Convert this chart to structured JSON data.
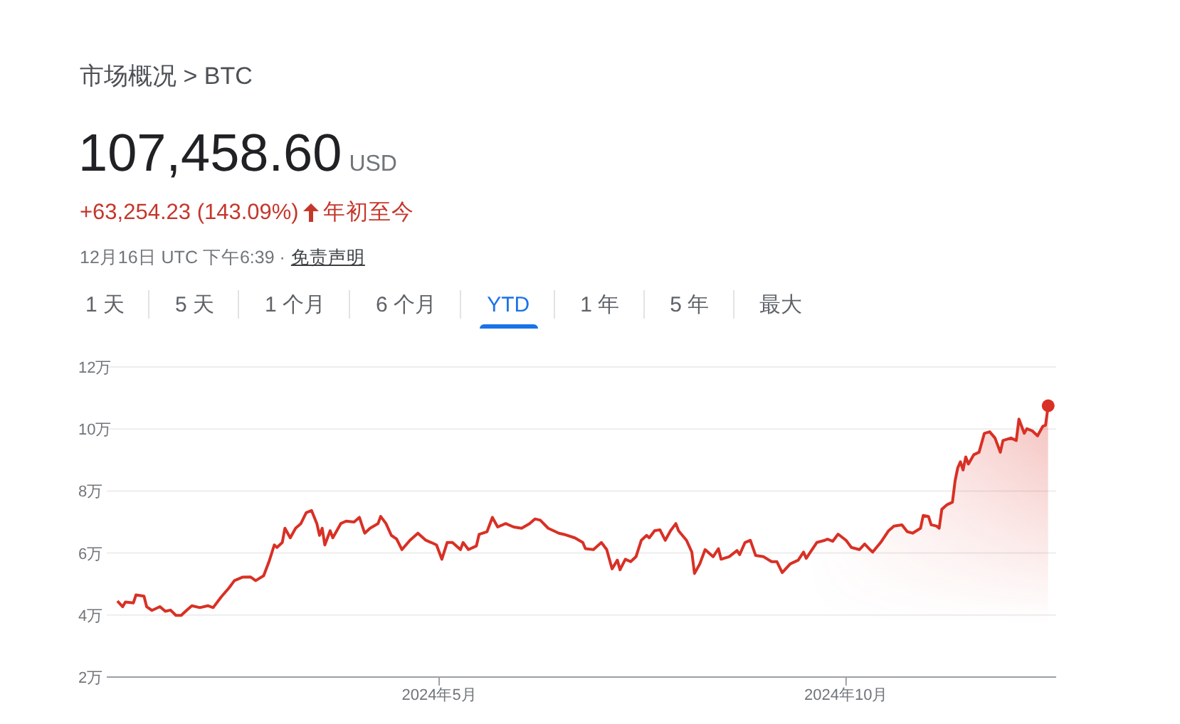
{
  "chart_data": {
    "type": "area",
    "title": "市场概况 > BTC",
    "annotations": [
      "107,458.60",
      "USD",
      "+63,254.23 (143.09%)",
      "年初至今",
      "12月16日 UTC 下午6:39 ·",
      "免责声明",
      "1 天",
      "5 天",
      "1 个月",
      "6 个月",
      "YTD",
      "1 年",
      "5 年",
      "最大"
    ],
    "series": [
      {
        "color": "#d93025",
        "x": [
          "2024-01-01",
          "2024-01-03",
          "2024-01-04",
          "2024-01-07",
          "2024-01-08",
          "2024-01-11",
          "2024-01-12",
          "2024-01-14",
          "2024-01-17",
          "2024-01-19",
          "2024-01-21",
          "2024-01-23",
          "2024-01-25",
          "2024-01-27",
          "2024-01-29",
          "2024-02-01",
          "2024-02-04",
          "2024-02-06",
          "2024-02-09",
          "2024-02-12",
          "2024-02-14",
          "2024-02-17",
          "2024-02-20",
          "2024-02-22",
          "2024-02-25",
          "2024-02-27",
          "2024-02-29",
          "2024-03-01",
          "2024-03-03",
          "2024-03-04",
          "2024-03-06",
          "2024-03-08",
          "2024-03-10",
          "2024-03-12",
          "2024-03-14",
          "2024-03-16",
          "2024-03-17",
          "2024-03-18",
          "2024-03-19",
          "2024-03-21",
          "2024-03-22",
          "2024-03-25",
          "2024-03-27",
          "2024-03-30",
          "2024-04-01",
          "2024-04-03",
          "2024-04-05",
          "2024-04-08",
          "2024-04-09",
          "2024-04-11",
          "2024-04-13",
          "2024-04-15",
          "2024-04-17",
          "2024-04-20",
          "2024-04-23",
          "2024-04-26",
          "2024-04-28",
          "2024-04-30",
          "2024-05-02",
          "2024-05-04",
          "2024-05-06",
          "2024-05-09",
          "2024-05-10",
          "2024-05-12",
          "2024-05-15",
          "2024-05-16",
          "2024-05-19",
          "2024-05-21",
          "2024-05-23",
          "2024-05-26",
          "2024-05-29",
          "2024-06-01",
          "2024-06-04",
          "2024-06-06",
          "2024-06-08",
          "2024-06-11",
          "2024-06-15",
          "2024-06-17",
          "2024-06-21",
          "2024-06-24",
          "2024-06-25",
          "2024-06-28",
          "2024-07-01",
          "2024-07-03",
          "2024-07-05",
          "2024-07-07",
          "2024-07-08",
          "2024-07-10",
          "2024-07-12",
          "2024-07-14",
          "2024-07-16",
          "2024-07-18",
          "2024-07-19",
          "2024-07-21",
          "2024-07-23",
          "2024-07-25",
          "2024-07-27",
          "2024-07-29",
          "2024-07-30",
          "2024-08-02",
          "2024-08-04",
          "2024-08-05",
          "2024-08-07",
          "2024-08-09",
          "2024-08-12",
          "2024-08-14",
          "2024-08-15",
          "2024-08-18",
          "2024-08-21",
          "2024-08-22",
          "2024-08-24",
          "2024-08-26",
          "2024-08-28",
          "2024-08-31",
          "2024-09-03",
          "2024-09-05",
          "2024-09-07",
          "2024-09-10",
          "2024-09-13",
          "2024-09-15",
          "2024-09-16",
          "2024-09-20",
          "2024-09-23",
          "2024-09-24",
          "2024-09-26",
          "2024-09-28",
          "2024-10-01",
          "2024-10-03",
          "2024-10-06",
          "2024-10-08",
          "2024-10-10",
          "2024-10-11",
          "2024-10-14",
          "2024-10-17",
          "2024-10-19",
          "2024-10-22",
          "2024-10-24",
          "2024-10-26",
          "2024-10-29",
          "2024-10-30",
          "2024-11-01",
          "2024-11-02",
          "2024-11-04",
          "2024-11-05",
          "2024-11-06",
          "2024-11-08",
          "2024-11-10",
          "2024-11-11",
          "2024-11-12",
          "2024-11-13",
          "2024-11-14",
          "2024-11-15",
          "2024-11-16",
          "2024-11-18",
          "2024-11-20",
          "2024-11-22",
          "2024-11-24",
          "2024-11-26",
          "2024-11-28",
          "2024-11-29",
          "2024-12-02",
          "2024-12-04",
          "2024-12-05",
          "2024-12-07",
          "2024-12-08",
          "2024-12-10",
          "2024-12-12",
          "2024-12-14",
          "2024-12-15",
          "2024-12-16"
        ],
        "values": [
          4.45,
          4.27,
          4.42,
          4.39,
          4.65,
          4.61,
          4.27,
          4.15,
          4.27,
          4.12,
          4.16,
          3.99,
          3.99,
          4.15,
          4.3,
          4.24,
          4.3,
          4.24,
          4.58,
          4.88,
          5.11,
          5.22,
          5.23,
          5.11,
          5.27,
          5.72,
          6.26,
          6.18,
          6.34,
          6.8,
          6.49,
          6.8,
          6.95,
          7.3,
          7.37,
          6.95,
          6.57,
          6.8,
          6.26,
          6.72,
          6.49,
          6.95,
          7.03,
          7.0,
          7.15,
          6.64,
          6.8,
          6.95,
          7.18,
          6.95,
          6.57,
          6.45,
          6.11,
          6.41,
          6.64,
          6.41,
          6.34,
          6.26,
          5.8,
          6.34,
          6.34,
          6.11,
          6.34,
          6.11,
          6.23,
          6.6,
          6.69,
          7.15,
          6.84,
          6.95,
          6.84,
          6.8,
          6.95,
          7.1,
          7.06,
          6.8,
          6.64,
          6.6,
          6.49,
          6.34,
          6.14,
          6.11,
          6.34,
          6.11,
          5.49,
          5.77,
          5.46,
          5.8,
          5.72,
          5.88,
          6.41,
          6.57,
          6.49,
          6.72,
          6.75,
          6.41,
          6.72,
          6.95,
          6.72,
          6.41,
          6.03,
          5.34,
          5.65,
          6.11,
          5.88,
          6.14,
          5.8,
          5.88,
          6.08,
          5.95,
          6.34,
          6.41,
          5.92,
          5.88,
          5.72,
          5.72,
          5.37,
          5.65,
          5.77,
          6.03,
          5.83,
          6.34,
          6.41,
          6.45,
          6.38,
          6.61,
          6.41,
          6.18,
          6.11,
          6.29,
          6.11,
          6.03,
          6.34,
          6.72,
          6.87,
          6.91,
          6.69,
          6.64,
          6.8,
          7.21,
          7.18,
          6.91,
          6.87,
          6.8,
          7.41,
          7.56,
          7.64,
          8.33,
          8.75,
          8.94,
          8.68,
          9.1,
          8.87,
          9.17,
          9.25,
          9.86,
          9.91,
          9.71,
          9.25,
          9.63,
          9.71,
          9.63,
          10.32,
          9.86,
          10.01,
          9.94,
          9.78,
          10.09,
          10.12,
          10.75
        ]
      },
      {
        "type": "scatter",
        "color": "#d93025",
        "marker": "circle",
        "x": [
          "2024-12-16"
        ],
        "values": [
          10.75
        ]
      }
    ],
    "xlim": [
      "2023-12-28",
      "2024-12-19"
    ],
    "xticks": [
      {
        "value": "2024-05-01",
        "label": "2024年5月"
      },
      {
        "value": "2024-10-01",
        "label": "2024年10月"
      }
    ],
    "ylim": [
      2,
      12
    ],
    "yticks": [
      {
        "value": 2,
        "label": "2万"
      },
      {
        "value": 4,
        "label": "4万"
      },
      {
        "value": 6,
        "label": "6万"
      },
      {
        "value": 8,
        "label": "8万"
      },
      {
        "value": 10,
        "label": "10万"
      },
      {
        "value": 12,
        "label": "12万"
      }
    ],
    "grid": "y"
  }
}
